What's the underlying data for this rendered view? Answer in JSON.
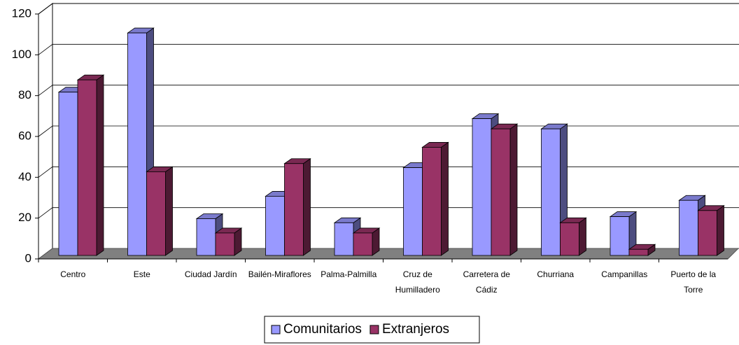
{
  "chart_data": {
    "type": "bar3d",
    "categories": [
      "Centro",
      "Este",
      "Ciudad Jardín",
      "Bailén-Miraflores",
      "Palma-Palmilla",
      "Cruz de Humilladero",
      "Carretera de Cádiz",
      "Churriana",
      "Campanillas",
      "Puerto de la Torre"
    ],
    "series": [
      {
        "name": "Comunitarios",
        "color": "#9999ff",
        "values": [
          80,
          109,
          18,
          29,
          16,
          43,
          67,
          62,
          19,
          27
        ]
      },
      {
        "name": "Extranjeros",
        "color": "#993366",
        "values": [
          86,
          41,
          11,
          45,
          11,
          53,
          62,
          16,
          3,
          22
        ]
      }
    ],
    "ylim": [
      0,
      120
    ],
    "yticks": [
      0,
      20,
      40,
      60,
      80,
      100,
      120
    ],
    "grid": true,
    "legend": "bottom"
  }
}
